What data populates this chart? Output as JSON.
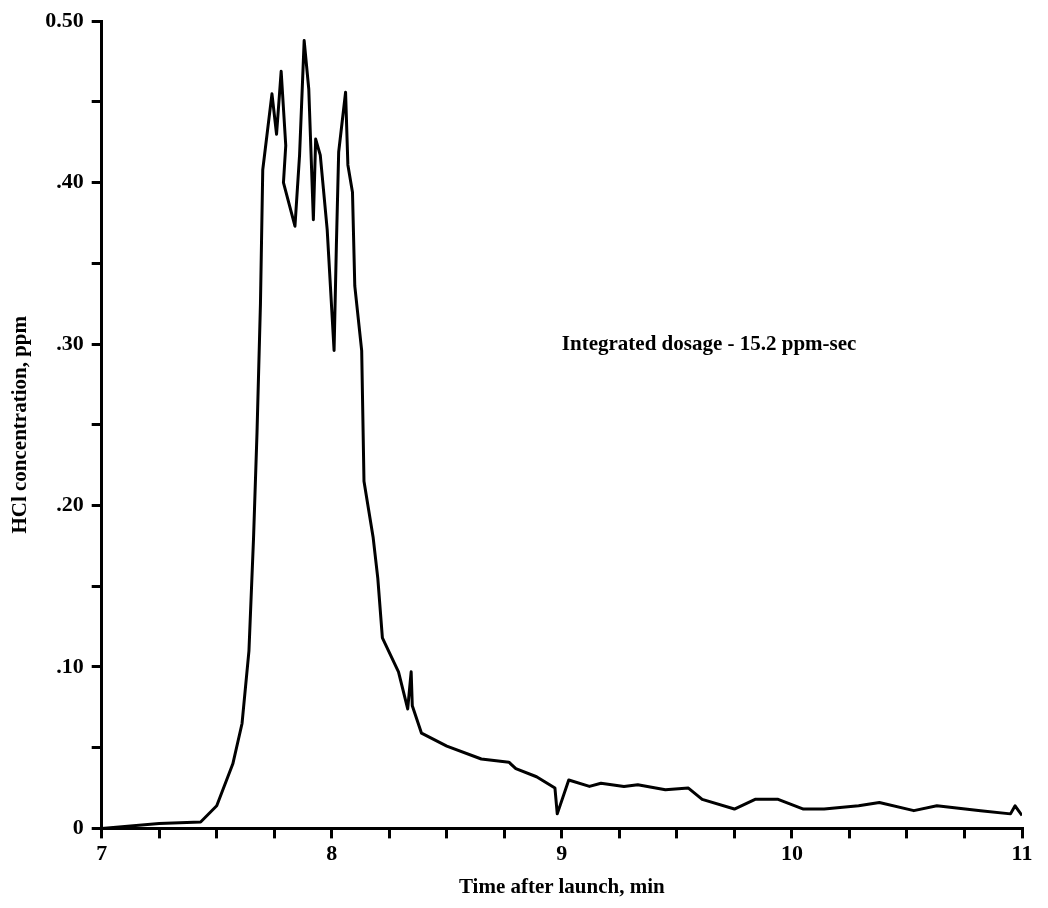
{
  "chart_data": {
    "type": "line",
    "xlabel": "Time after launch, min",
    "ylabel": "HCl concentration, ppm",
    "annotations": [
      "Integrated dosage - 15.2 ppm-sec"
    ],
    "series": [
      {
        "color": "#000000",
        "x": [
          7,
          7.25,
          7.43,
          7.5,
          7.57,
          7.61,
          7.64,
          7.66,
          7.675,
          7.69,
          7.7,
          7.74,
          7.76,
          7.78,
          7.8,
          7.79,
          7.84,
          7.86,
          7.88,
          7.9,
          7.92,
          7.93,
          7.95,
          7.98,
          8.01,
          8.02,
          8.03,
          8.06,
          8.07,
          8.09,
          8.1,
          8.13,
          8.14,
          8.18,
          8.2,
          8.22,
          8.29,
          8.33,
          8.345,
          8.35,
          8.39,
          8.5,
          8.65,
          8.77,
          8.8,
          8.89,
          8.97,
          8.98,
          9.03,
          9.12,
          9.17,
          9.27,
          9.33,
          9.45,
          9.55,
          9.61,
          9.75,
          9.84,
          9.94,
          10.05,
          10.14,
          10.29,
          10.38,
          10.53,
          10.63,
          10.82,
          10.95,
          10.97,
          11
        ],
        "values": [
          0,
          0.003,
          0.004,
          0.014,
          0.04,
          0.065,
          0.11,
          0.18,
          0.245,
          0.325,
          0.408,
          0.455,
          0.43,
          0.469,
          0.423,
          0.4,
          0.373,
          0.417,
          0.488,
          0.458,
          0.377,
          0.427,
          0.417,
          0.371,
          0.296,
          0.361,
          0.419,
          0.456,
          0.411,
          0.394,
          0.336,
          0.296,
          0.215,
          0.18,
          0.155,
          0.118,
          0.097,
          0.074,
          0.097,
          0.076,
          0.059,
          0.051,
          0.043,
          0.041,
          0.037,
          0.032,
          0.025,
          0.009,
          0.03,
          0.026,
          0.028,
          0.026,
          0.027,
          0.024,
          0.025,
          0.018,
          0.012,
          0.018,
          0.018,
          0.012,
          0.012,
          0.014,
          0.016,
          0.011,
          0.014,
          0.011,
          0.009,
          0.014,
          0.008
        ]
      }
    ],
    "xlim": [
      7,
      11
    ],
    "xticks": [
      7,
      {
        "value": 7.25,
        "label": null
      },
      {
        "value": 7.5,
        "label": null
      },
      {
        "value": 7.75,
        "label": null
      },
      8,
      {
        "value": 8.25,
        "label": null
      },
      {
        "value": 8.5,
        "label": null
      },
      {
        "value": 8.75,
        "label": null
      },
      9,
      {
        "value": 9.25,
        "label": null
      },
      {
        "value": 9.5,
        "label": null
      },
      {
        "value": 9.75,
        "label": null
      },
      10,
      {
        "value": 10.25,
        "label": null
      },
      {
        "value": 10.5,
        "label": null
      },
      {
        "value": 10.75,
        "label": null
      },
      11
    ],
    "ylim": [
      0,
      0.5
    ],
    "yticks": [
      0,
      {
        "value": 0.05,
        "label": null
      },
      {
        "value": 0.1,
        "label": ".10"
      },
      {
        "value": 0.15,
        "label": null
      },
      {
        "value": 0.2,
        "label": ".20"
      },
      {
        "value": 0.25,
        "label": null
      },
      {
        "value": 0.3,
        "label": ".30"
      },
      {
        "value": 0.35,
        "label": null
      },
      {
        "value": 0.4,
        "label": ".40"
      },
      {
        "value": 0.45,
        "label": null
      },
      {
        "value": 0.5,
        "label": "0.50"
      }
    ],
    "grid": false,
    "legend": false,
    "marker": "none",
    "line_style": "solid"
  }
}
